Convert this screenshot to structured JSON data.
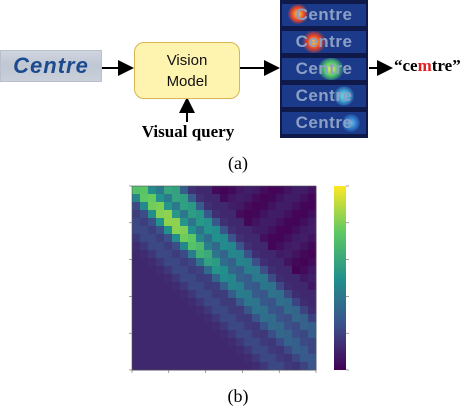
{
  "panel_a": {
    "input_text": "Centre",
    "model_label_line1": "Vision",
    "model_label_line2": "Model",
    "query_label": "Visual query",
    "attention_words": [
      "Centre",
      "Centre",
      "Centre",
      "Centre",
      "Centre"
    ],
    "output_prefix": "“ce",
    "output_highlight": "m",
    "output_suffix": "tre”",
    "caption": "(a)",
    "highlight_color": "#e02020"
  },
  "panel_b": {
    "caption": "(b)",
    "colormap": "viridis"
  }
}
